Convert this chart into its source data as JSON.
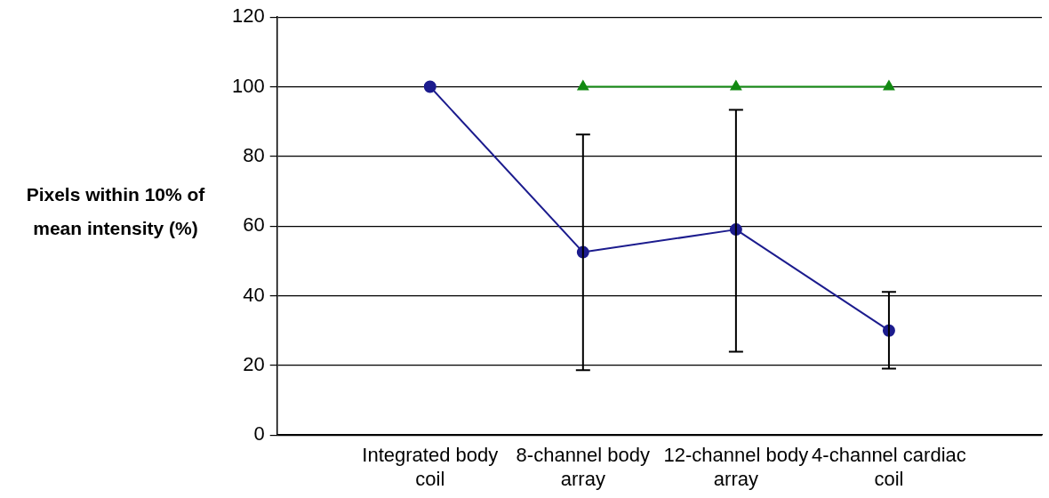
{
  "chart_data": {
    "type": "line",
    "ylabel": "Pixels within 10% of mean intensity (%)",
    "categories": [
      null,
      "Integrated body coil",
      "8-channel body array",
      "12-channel body array",
      "4-channel cardiac coil",
      null
    ],
    "series": [
      {
        "color": "#1c1c8e",
        "marker": "circle",
        "values": [
          null,
          100,
          52.5,
          59,
          30,
          null
        ],
        "errors": [
          null,
          null,
          [
            18.6,
            86.3
          ],
          [
            23.9,
            93.4
          ],
          [
            19.1,
            41.1
          ],
          null
        ]
      },
      {
        "color": "#138a13",
        "marker": "triangle",
        "values": [
          null,
          null,
          100,
          100,
          100,
          null
        ]
      }
    ],
    "ylim": [
      0,
      120
    ],
    "yticks": [
      0,
      20,
      40,
      60,
      80,
      100,
      120
    ],
    "grid": "y"
  }
}
